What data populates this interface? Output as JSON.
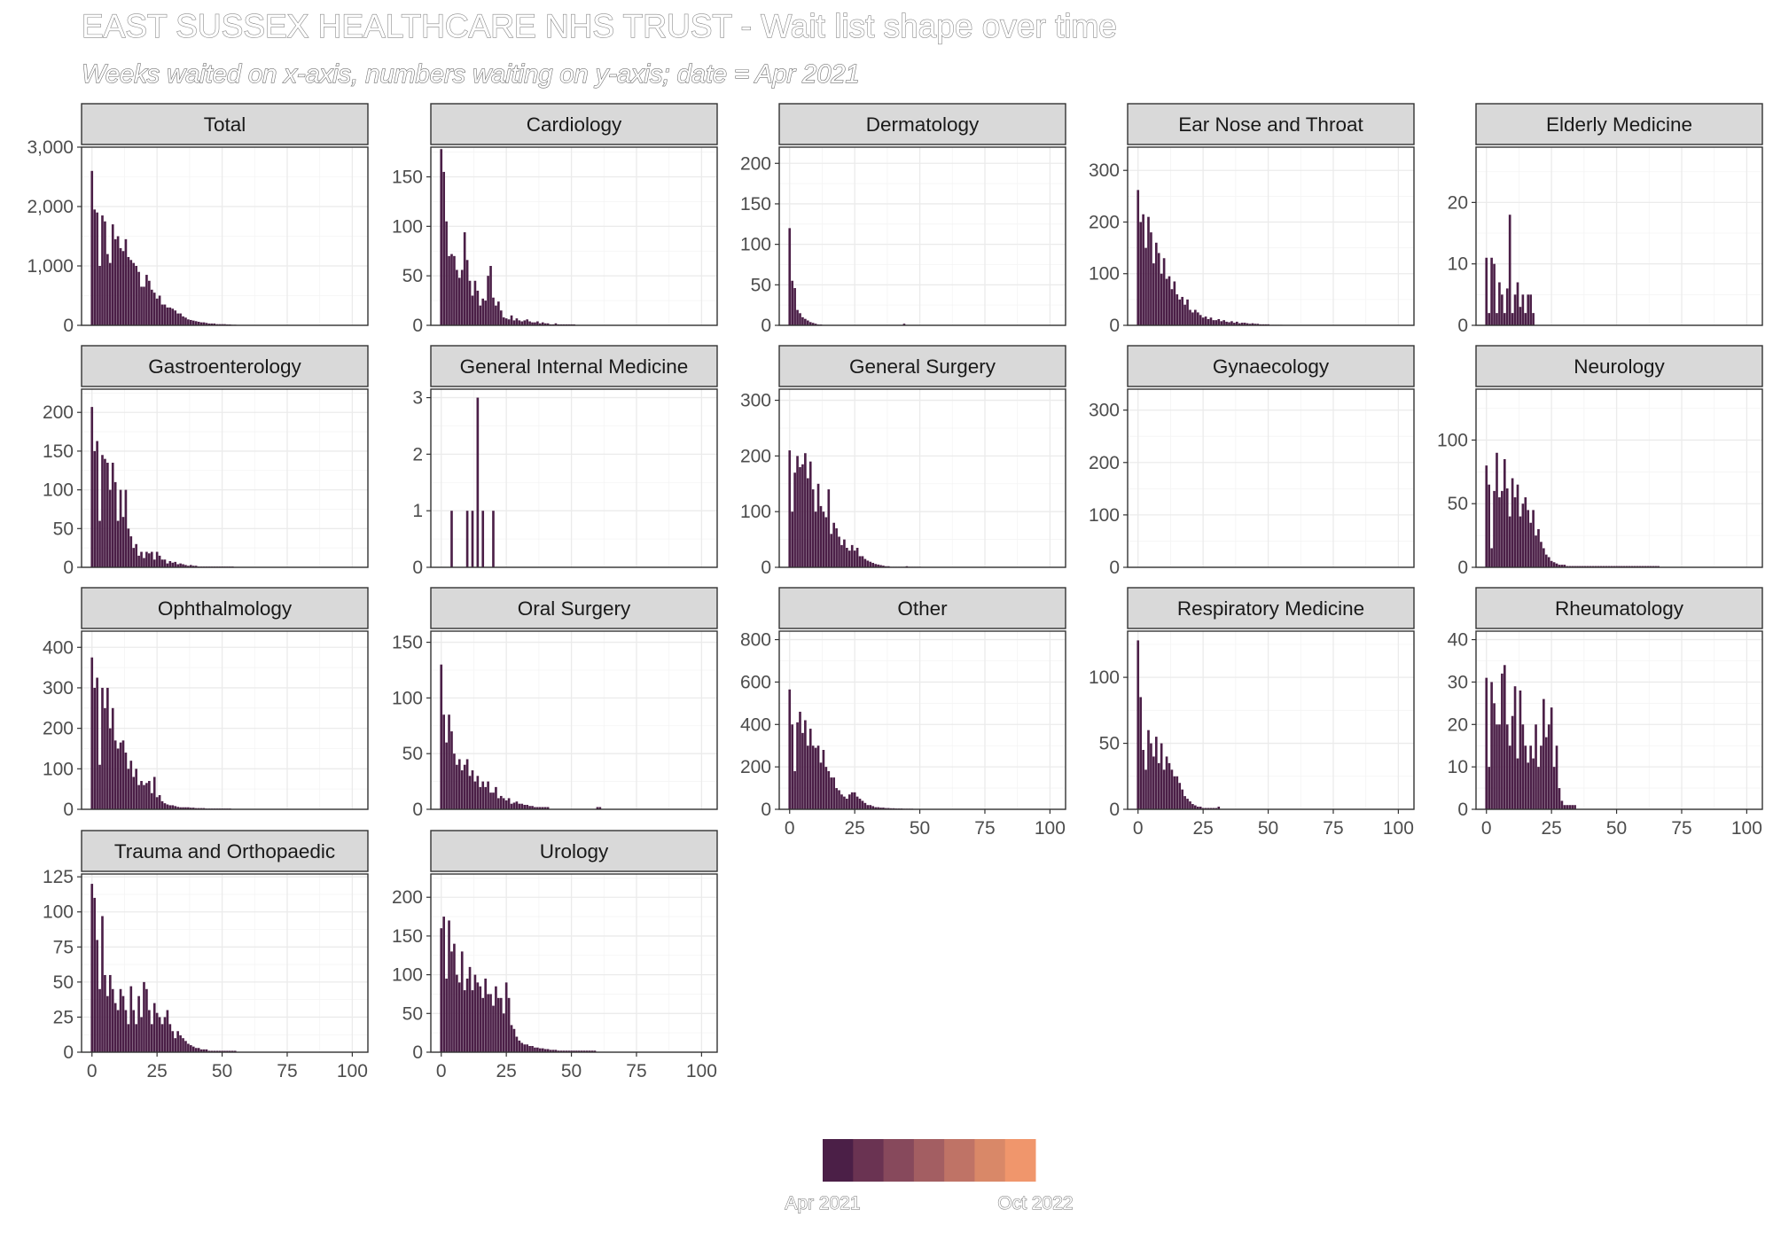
{
  "title": "EAST SUSSEX HEALTHCARE NHS TRUST - Wait list shape over time",
  "subtitle": "Weeks waited on x-axis, numbers waiting on y-axis; date = Apr 2021",
  "legend": {
    "labels": [
      "Apr 2021",
      "Oct 2022"
    ],
    "colors": [
      "#4b1f47",
      "#6a3352",
      "#87495c",
      "#a35e62",
      "#bf7366",
      "#d98868",
      "#f0966c"
    ]
  },
  "bar_color": "#4b1f47",
  "chart_data": {
    "type": "bar",
    "layout": "facet_wrap",
    "ncol": 5,
    "x_ticks": [
      0,
      25,
      50,
      75,
      100
    ],
    "xlim": [
      -4,
      106
    ],
    "panels": [
      {
        "name": "Total",
        "ylim": [
          0,
          3000
        ],
        "yticks": [
          0,
          1000,
          2000,
          3000
        ],
        "ytick_labels": [
          "0",
          "1,000",
          "2,000",
          "3,000"
        ],
        "values": [
          2600,
          1950,
          1900,
          1000,
          1850,
          1750,
          1200,
          1050,
          1700,
          1450,
          1500,
          1300,
          1250,
          1450,
          1150,
          1100,
          1050,
          1000,
          900,
          650,
          650,
          850,
          750,
          600,
          550,
          450,
          500,
          350,
          350,
          300,
          300,
          280,
          250,
          200,
          200,
          150,
          130,
          100,
          90,
          80,
          70,
          60,
          50,
          50,
          40,
          30,
          30,
          30,
          20,
          20,
          20,
          20,
          15,
          15,
          10,
          10
        ]
      },
      {
        "name": "Cardiology",
        "ylim": [
          0,
          180
        ],
        "yticks": [
          0,
          50,
          100,
          150
        ],
        "ytick_labels": [
          "0",
          "50",
          "100",
          "150"
        ],
        "values": [
          178,
          155,
          105,
          70,
          72,
          70,
          56,
          48,
          56,
          94,
          66,
          45,
          30,
          45,
          35,
          20,
          27,
          25,
          50,
          60,
          28,
          20,
          24,
          15,
          8,
          7,
          6,
          10,
          5,
          7,
          5,
          4,
          5,
          6,
          4,
          3,
          3,
          4,
          2,
          3,
          2,
          2,
          1,
          1,
          2,
          1,
          1,
          1,
          1,
          1,
          1,
          1
        ]
      },
      {
        "name": "Dermatology",
        "ylim": [
          0,
          220
        ],
        "yticks": [
          0,
          50,
          100,
          150,
          200
        ],
        "ytick_labels": [
          "0",
          "50",
          "100",
          "150",
          "200"
        ],
        "values": [
          120,
          55,
          46,
          19,
          15,
          10,
          8,
          6,
          4,
          3,
          2,
          1,
          1,
          0,
          0,
          0,
          0,
          0,
          0,
          0,
          0,
          0,
          0,
          0,
          0,
          0,
          0,
          0,
          0,
          0,
          0,
          0,
          0,
          0,
          0,
          0,
          0,
          0,
          0,
          0,
          0,
          0,
          0,
          0,
          2
        ]
      },
      {
        "name": "Ear Nose and Throat",
        "ylim": [
          0,
          345
        ],
        "yticks": [
          0,
          100,
          200,
          300
        ],
        "ytick_labels": [
          "0",
          "100",
          "200",
          "300"
        ],
        "values": [
          262,
          200,
          215,
          150,
          210,
          180,
          120,
          160,
          140,
          100,
          130,
          90,
          95,
          70,
          85,
          60,
          50,
          55,
          40,
          50,
          30,
          25,
          30,
          25,
          20,
          15,
          17,
          12,
          15,
          10,
          10,
          12,
          8,
          10,
          7,
          6,
          8,
          5,
          7,
          4,
          5,
          5,
          4,
          3,
          4,
          3,
          3,
          2,
          2,
          2,
          2,
          1,
          1,
          1,
          1,
          1
        ]
      },
      {
        "name": "Elderly Medicine",
        "ylim": [
          0,
          29
        ],
        "yticks": [
          0,
          10,
          20
        ],
        "ytick_labels": [
          "0",
          "10",
          "20"
        ],
        "values": [
          11,
          2,
          11,
          10,
          2,
          7,
          5,
          2,
          6,
          18,
          2,
          5,
          7,
          3,
          5,
          2,
          5,
          5,
          2
        ]
      },
      {
        "name": "Gastroenterology",
        "ylim": [
          0,
          230
        ],
        "yticks": [
          0,
          50,
          100,
          150,
          200
        ],
        "ytick_labels": [
          "0",
          "50",
          "100",
          "150",
          "200"
        ],
        "values": [
          207,
          150,
          163,
          60,
          145,
          140,
          135,
          100,
          135,
          110,
          60,
          100,
          65,
          100,
          50,
          40,
          25,
          30,
          15,
          20,
          12,
          20,
          18,
          20,
          10,
          20,
          15,
          10,
          10,
          5,
          8,
          6,
          7,
          4,
          5,
          4,
          3,
          2,
          3,
          2,
          2,
          1,
          1,
          1,
          1,
          1,
          1,
          1,
          1,
          1,
          1,
          1,
          1,
          1,
          1
        ]
      },
      {
        "name": "General Internal Medicine",
        "ylim": [
          0,
          3.15
        ],
        "yticks": [
          0,
          1,
          2,
          3
        ],
        "ytick_labels": [
          "0",
          "1",
          "2",
          "3"
        ],
        "values": [
          0,
          0,
          0,
          0,
          1,
          0,
          0,
          0,
          0,
          0,
          1,
          0,
          1,
          0,
          3,
          0,
          1,
          0,
          0,
          0,
          1
        ]
      },
      {
        "name": "General Surgery",
        "ylim": [
          0,
          320
        ],
        "yticks": [
          0,
          100,
          200,
          300
        ],
        "ytick_labels": [
          "0",
          "100",
          "200",
          "300"
        ],
        "values": [
          210,
          100,
          170,
          200,
          180,
          185,
          205,
          160,
          190,
          140,
          100,
          150,
          110,
          100,
          90,
          140,
          60,
          80,
          70,
          55,
          40,
          50,
          35,
          30,
          40,
          30,
          35,
          20,
          20,
          15,
          12,
          10,
          8,
          6,
          5,
          4,
          3,
          2,
          2,
          1,
          1,
          1,
          1,
          1,
          1,
          2,
          1,
          1,
          1,
          1,
          1
        ]
      },
      {
        "name": "Gynaecology",
        "ylim": [
          0,
          340
        ],
        "yticks": [
          0,
          100,
          200,
          300
        ],
        "ytick_labels": [
          "0",
          "100",
          "200",
          "300"
        ],
        "values": []
      },
      {
        "name": "Neurology",
        "ylim": [
          0,
          140
        ],
        "yticks": [
          0,
          50,
          100
        ],
        "ytick_labels": [
          "0",
          "50",
          "100"
        ],
        "values": [
          80,
          65,
          15,
          60,
          90,
          55,
          60,
          85,
          62,
          40,
          70,
          55,
          65,
          40,
          50,
          55,
          45,
          35,
          45,
          25,
          30,
          20,
          15,
          10,
          8,
          5,
          4,
          3,
          2,
          2,
          2,
          1,
          1,
          1,
          1,
          1,
          1,
          1,
          1,
          1,
          1,
          1,
          1,
          1,
          1,
          1,
          1,
          1,
          1,
          1,
          1,
          1,
          1,
          1,
          1,
          1,
          1,
          1,
          1,
          1,
          1,
          1,
          1,
          1,
          1,
          1,
          1
        ]
      },
      {
        "name": "Ophthalmology",
        "ylim": [
          0,
          440
        ],
        "yticks": [
          0,
          100,
          200,
          300,
          400
        ],
        "ytick_labels": [
          "0",
          "100",
          "200",
          "300",
          "400"
        ],
        "values": [
          375,
          300,
          325,
          110,
          300,
          250,
          300,
          200,
          250,
          170,
          150,
          165,
          170,
          140,
          100,
          120,
          80,
          100,
          60,
          70,
          60,
          65,
          70,
          40,
          80,
          30,
          35,
          20,
          15,
          12,
          10,
          10,
          8,
          6,
          5,
          5,
          5,
          5,
          4,
          4,
          3,
          3,
          3,
          3,
          2,
          2,
          2,
          2,
          2,
          2,
          2,
          2,
          2,
          2
        ]
      },
      {
        "name": "Oral Surgery",
        "ylim": [
          0,
          160
        ],
        "yticks": [
          0,
          50,
          100,
          150
        ],
        "ytick_labels": [
          "0",
          "50",
          "100",
          "150"
        ],
        "values": [
          130,
          85,
          60,
          85,
          70,
          50,
          40,
          45,
          35,
          40,
          45,
          30,
          35,
          25,
          30,
          20,
          25,
          20,
          25,
          15,
          15,
          20,
          10,
          12,
          10,
          8,
          10,
          5,
          6,
          7,
          5,
          5,
          4,
          4,
          3,
          3,
          2,
          2,
          2,
          2,
          2,
          2,
          0,
          0,
          0,
          0,
          0,
          0,
          0,
          0,
          0,
          0,
          0,
          0,
          0,
          0,
          0,
          0,
          0,
          0,
          2,
          2
        ]
      },
      {
        "name": "Other",
        "ylim": [
          0,
          840
        ],
        "yticks": [
          0,
          200,
          400,
          600,
          800
        ],
        "ytick_labels": [
          "0",
          "200",
          "400",
          "600",
          "800"
        ],
        "values": [
          565,
          400,
          180,
          410,
          460,
          360,
          420,
          300,
          380,
          300,
          290,
          300,
          220,
          280,
          200,
          180,
          150,
          150,
          100,
          90,
          70,
          60,
          50,
          70,
          80,
          80,
          60,
          50,
          40,
          30,
          20,
          20,
          15,
          10,
          10,
          8,
          8,
          6,
          6,
          5,
          5,
          4,
          4,
          4,
          3,
          3,
          3,
          3,
          2,
          2,
          2,
          2,
          2,
          2,
          2,
          2,
          2,
          2,
          1,
          1
        ]
      },
      {
        "name": "Respiratory Medicine",
        "ylim": [
          0,
          135
        ],
        "yticks": [
          0,
          50,
          100
        ],
        "ytick_labels": [
          "0",
          "50",
          "100"
        ],
        "values": [
          128,
          85,
          45,
          30,
          60,
          50,
          40,
          55,
          35,
          50,
          30,
          40,
          35,
          30,
          25,
          25,
          20,
          15,
          10,
          8,
          6,
          4,
          3,
          2,
          2,
          1,
          1,
          1,
          1,
          1,
          1,
          2
        ]
      },
      {
        "name": "Rheumatology",
        "ylim": [
          0,
          42
        ],
        "yticks": [
          0,
          10,
          20,
          30,
          40
        ],
        "ytick_labels": [
          "0",
          "10",
          "20",
          "30",
          "40"
        ],
        "values": [
          31,
          10,
          30,
          25,
          20,
          20,
          32,
          34,
          20,
          15,
          22,
          29,
          12,
          28,
          20,
          15,
          11,
          15,
          12,
          20,
          10,
          15,
          26,
          17,
          20,
          24,
          10,
          15,
          5,
          2,
          1,
          1,
          1,
          1,
          1
        ]
      },
      {
        "name": "Trauma and Orthopaedic",
        "ylim": [
          0,
          127
        ],
        "yticks": [
          0,
          25,
          50,
          75,
          100,
          125
        ],
        "ytick_labels": [
          "0",
          "25",
          "50",
          "75",
          "100",
          "125"
        ],
        "values": [
          120,
          110,
          80,
          45,
          97,
          55,
          40,
          55,
          45,
          35,
          30,
          45,
          40,
          30,
          20,
          47,
          30,
          20,
          40,
          25,
          50,
          45,
          30,
          20,
          35,
          28,
          25,
          20,
          25,
          30,
          20,
          15,
          10,
          15,
          12,
          10,
          8,
          6,
          5,
          4,
          3,
          3,
          2,
          2,
          2,
          1,
          1,
          1,
          1,
          1,
          1,
          1,
          1,
          1,
          1,
          1
        ]
      },
      {
        "name": "Urology",
        "ylim": [
          0,
          230
        ],
        "yticks": [
          0,
          50,
          100,
          150,
          200
        ],
        "ytick_labels": [
          "0",
          "50",
          "100",
          "150",
          "200"
        ],
        "values": [
          160,
          175,
          95,
          170,
          130,
          140,
          100,
          90,
          130,
          80,
          95,
          110,
          80,
          100,
          90,
          85,
          70,
          95,
          75,
          75,
          60,
          85,
          70,
          70,
          50,
          90,
          70,
          35,
          30,
          20,
          15,
          12,
          10,
          10,
          8,
          8,
          6,
          6,
          5,
          5,
          4,
          4,
          3,
          3,
          3,
          2,
          2,
          2,
          2,
          2,
          2,
          2,
          2,
          2,
          2,
          2,
          2,
          2,
          2,
          2
        ]
      }
    ]
  }
}
